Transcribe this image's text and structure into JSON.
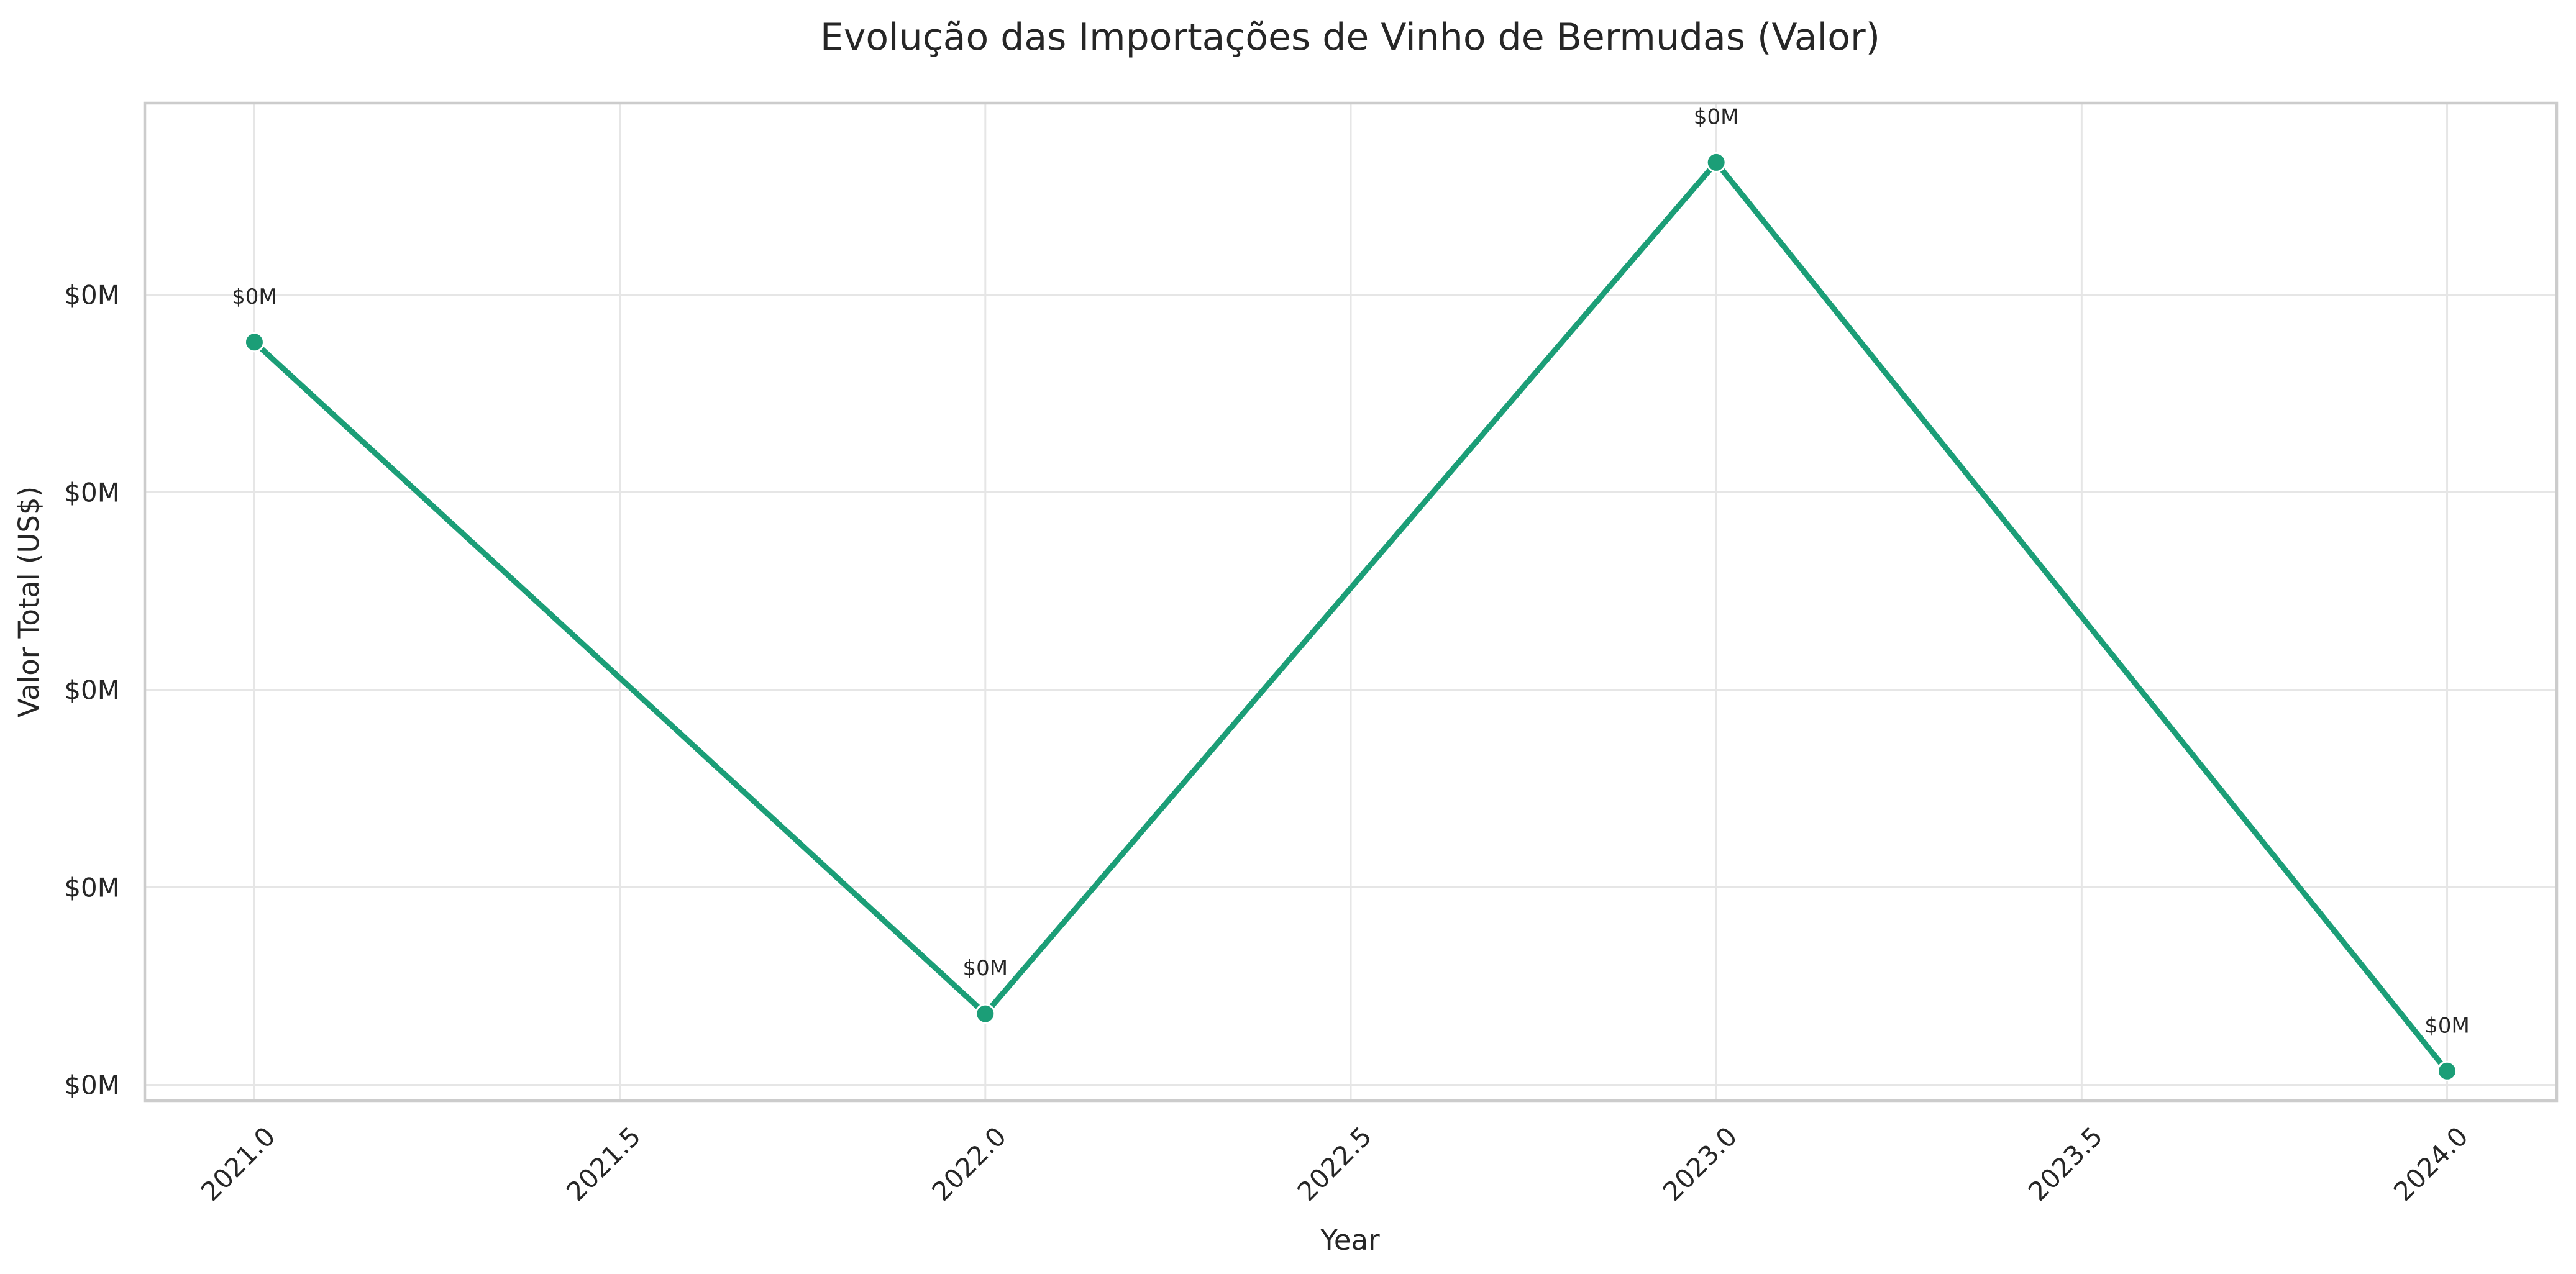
{
  "chart_data": {
    "type": "line",
    "title": "Evolução das Importações de Vinho de Bermudas (Valor)",
    "xlabel": "Year",
    "ylabel": "Valor Total (US$)",
    "xlim": [
      2020.85,
      2024.15
    ],
    "ylim": [
      -0.08,
      4.97
    ],
    "x_ticks": [
      {
        "value": 2021.0,
        "label": "2021.0"
      },
      {
        "value": 2021.5,
        "label": "2021.5"
      },
      {
        "value": 2022.0,
        "label": "2022.0"
      },
      {
        "value": 2022.5,
        "label": "2022.5"
      },
      {
        "value": 2023.0,
        "label": "2023.0"
      },
      {
        "value": 2023.5,
        "label": "2023.5"
      },
      {
        "value": 2024.0,
        "label": "2024.0"
      }
    ],
    "y_ticks": [
      {
        "value": 0,
        "label": "$0M"
      },
      {
        "value": 1,
        "label": "$0M"
      },
      {
        "value": 2,
        "label": "$0M"
      },
      {
        "value": 3,
        "label": "$0M"
      },
      {
        "value": 4,
        "label": "$0M"
      }
    ],
    "grid": true,
    "series": [
      {
        "color": "#1b9e77",
        "points": [
          {
            "x": 2021,
            "y": 3.76,
            "label": "$0M"
          },
          {
            "x": 2022,
            "y": 0.36,
            "label": "$0M"
          },
          {
            "x": 2023,
            "y": 4.67,
            "label": "$0M"
          },
          {
            "x": 2024,
            "y": 0.07,
            "label": "$0M"
          }
        ]
      }
    ]
  }
}
